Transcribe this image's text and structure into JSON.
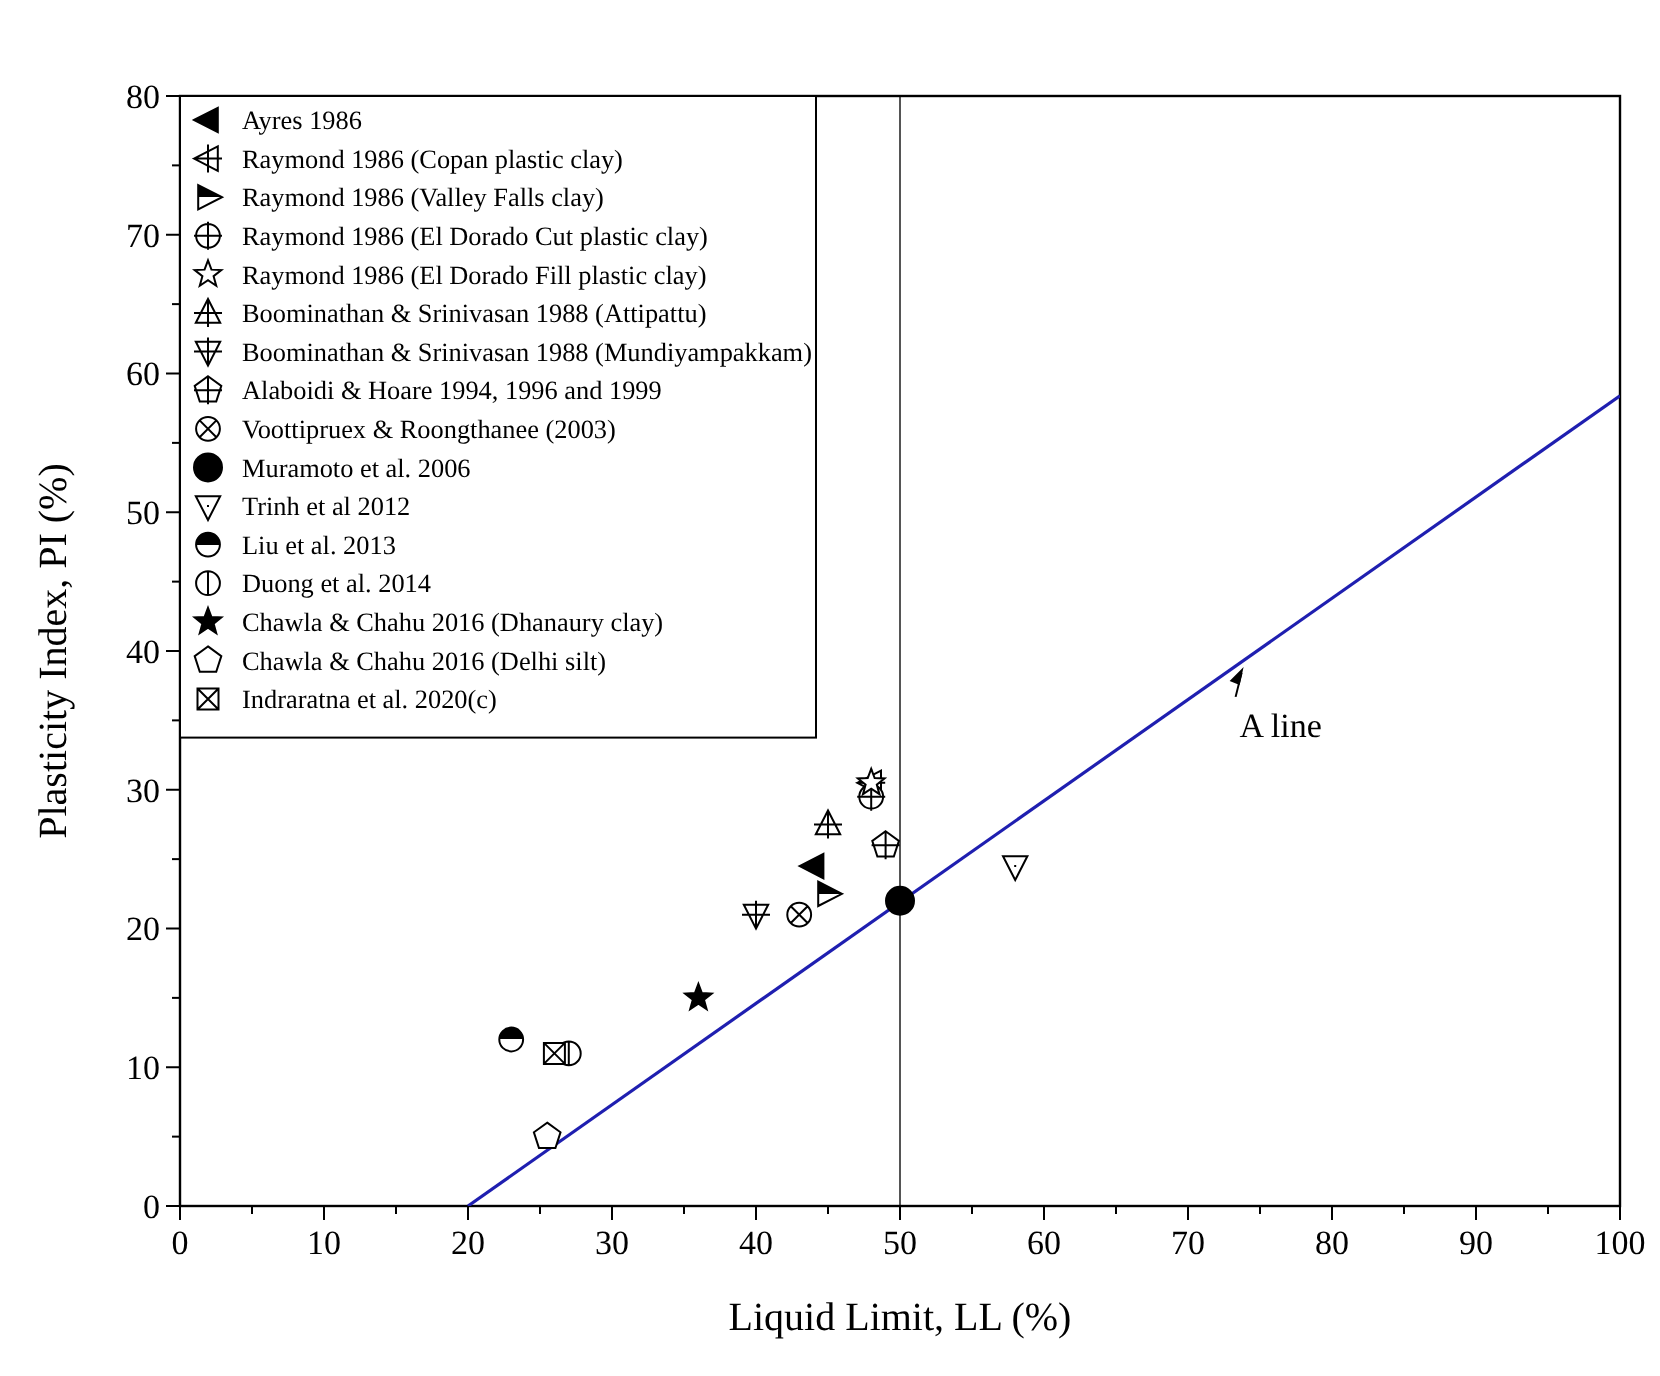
{
  "chart_data": {
    "type": "scatter",
    "xlabel": "Liquid Limit, LL (%)",
    "ylabel": "Plasticity Index, PI (%)",
    "xlim": [
      0,
      100
    ],
    "ylim": [
      0,
      80
    ],
    "xticks": [
      0,
      {
        "value": 5,
        "label": null
      },
      10,
      {
        "value": 15,
        "label": null
      },
      20,
      {
        "value": 25,
        "label": null
      },
      30,
      {
        "value": 35,
        "label": null
      },
      40,
      {
        "value": 45,
        "label": null
      },
      50,
      {
        "value": 55,
        "label": null
      },
      60,
      {
        "value": 65,
        "label": null
      },
      70,
      {
        "value": 75,
        "label": null
      },
      80,
      {
        "value": 85,
        "label": null
      },
      90,
      {
        "value": 95,
        "label": null
      },
      100
    ],
    "yticks": [
      0,
      {
        "value": 5,
        "label": null
      },
      10,
      {
        "value": 15,
        "label": null
      },
      20,
      {
        "value": 25,
        "label": null
      },
      30,
      {
        "value": 35,
        "label": null
      },
      40,
      {
        "value": 45,
        "label": null
      },
      50,
      {
        "value": 55,
        "label": null
      },
      60,
      {
        "value": 65,
        "label": null
      },
      70,
      {
        "value": 75,
        "label": null
      },
      80
    ],
    "grid": false,
    "legend": "top left",
    "series": [
      {
        "name": "Ayres 1986",
        "color": "#000000",
        "x": [
          44
        ],
        "values": [
          24.5
        ]
      },
      {
        "name": "Raymond 1986 (Copan plastic clay)",
        "color": "#000000",
        "x": [
          48
        ],
        "values": [
          30.5
        ]
      },
      {
        "name": "Raymond 1986 (Valley Falls clay)",
        "color": "#000000",
        "x": [
          45
        ],
        "values": [
          22.5
        ]
      },
      {
        "name": "Raymond 1986 (El Dorado Cut plastic clay)",
        "color": "#000000",
        "x": [
          48
        ],
        "values": [
          29.5
        ]
      },
      {
        "name": "Raymond 1986 (El Dorado Fill plastic clay)",
        "color": "#000000",
        "x": [
          48
        ],
        "values": [
          30.5
        ]
      },
      {
        "name": "Boominathan & Srinivasan 1988 (Attipattu)",
        "color": "#000000",
        "x": [
          45
        ],
        "values": [
          27.5
        ]
      },
      {
        "name": "Boominathan & Srinivasan 1988 (Mundiyampakkam)",
        "color": "#000000",
        "x": [
          40
        ],
        "values": [
          21
        ]
      },
      {
        "name": "Alaboidi & Hoare 1994, 1996 and 1999",
        "color": "#000000",
        "x": [
          49
        ],
        "values": [
          26
        ]
      },
      {
        "name": "Voottipruex & Roongthanee (2003)",
        "color": "#000000",
        "x": [
          43
        ],
        "values": [
          21
        ]
      },
      {
        "name": "Muramoto et al. 2006",
        "color": "#000000",
        "x": [
          50
        ],
        "values": [
          22
        ]
      },
      {
        "name": "Trinh et al 2012",
        "color": "#000000",
        "x": [
          58
        ],
        "values": [
          24.5
        ]
      },
      {
        "name": "Liu et al. 2013",
        "color": "#000000",
        "x": [
          23
        ],
        "values": [
          12
        ]
      },
      {
        "name": "Duong et al. 2014",
        "color": "#000000",
        "x": [
          27
        ],
        "values": [
          11
        ]
      },
      {
        "name": "Chawla & Chahu 2016 (Dhanaury clay)",
        "color": "#000000",
        "x": [
          36
        ],
        "values": [
          15
        ]
      },
      {
        "name": "Chawla & Chahu 2016 (Delhi silt)",
        "color": "#000000",
        "x": [
          25.5
        ],
        "values": [
          5
        ]
      },
      {
        "name": "Indraratna et al. 2020(c)",
        "color": "#000000",
        "x": [
          26
        ],
        "values": [
          11
        ]
      },
      {
        "type": "line",
        "color": "#1f1fb0",
        "marker": "none",
        "x": [
          20,
          100
        ],
        "values": [
          0,
          58.4
        ]
      }
    ],
    "ref_lines": [
      {
        "axis": "x",
        "value": 50,
        "color": "#555555"
      }
    ],
    "annotations": [
      {
        "text": "A line",
        "x": 74,
        "y": 39
      }
    ]
  }
}
